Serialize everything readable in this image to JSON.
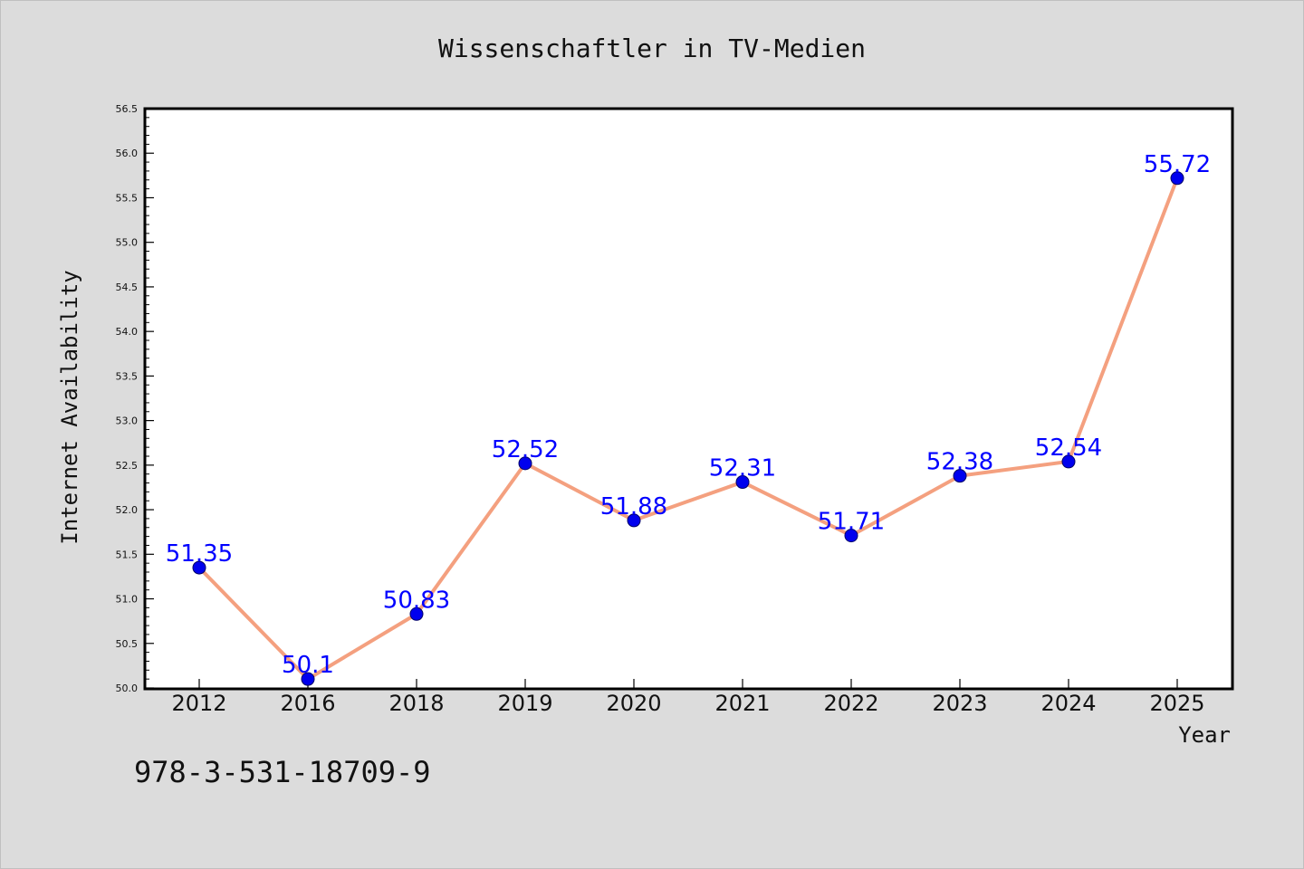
{
  "colors": {
    "background": "#dcdcdc",
    "plot_background": "#ffffff",
    "line": "#f4a07f",
    "marker": "#0000ee",
    "data_label": "#0000ff",
    "text": "#111111"
  },
  "footer_text": "978-3-531-18709-9",
  "chart_data": {
    "type": "line",
    "title": "Wissenschaftler in TV-Medien",
    "xlabel": "Year",
    "ylabel": "Internet Availability",
    "categories": [
      "2012",
      "2016",
      "2018",
      "2019",
      "2020",
      "2021",
      "2022",
      "2023",
      "2024",
      "2025"
    ],
    "series": [
      {
        "values": [
          51.35,
          50.1,
          50.83,
          52.52,
          51.88,
          52.31,
          51.71,
          52.38,
          52.54,
          55.72
        ],
        "labels": [
          "51.35",
          "50.1",
          "50.83",
          "52.52",
          "51.88",
          "52.31",
          "51.71",
          "52.38",
          "52.54",
          "55.72"
        ]
      }
    ],
    "ylim": [
      50.0,
      56.5
    ],
    "y_ticks": [
      "50.0",
      "50.5",
      "51.0",
      "51.5",
      "52.0",
      "52.5",
      "53.0",
      "53.5",
      "54.0",
      "54.5",
      "55.0",
      "55.5",
      "56.0",
      "56.5"
    ],
    "grid": false,
    "legend": "none"
  }
}
